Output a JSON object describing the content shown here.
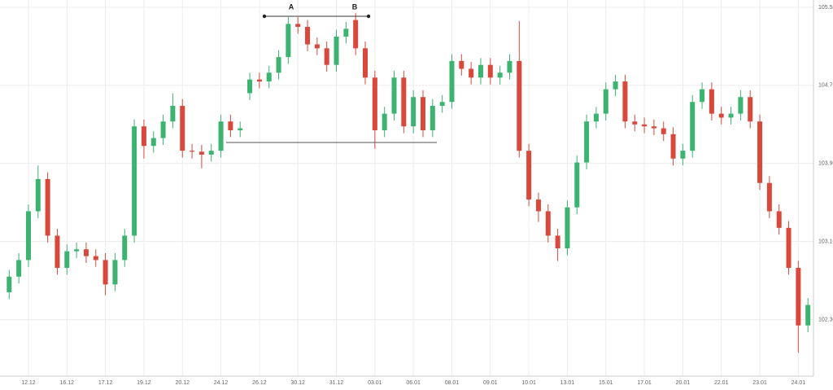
{
  "chart_data": {
    "type": "candlestick",
    "categories": [
      null,
      null,
      "12.12",
      null,
      null,
      null,
      "16.12",
      null,
      null,
      null,
      "17.12",
      null,
      null,
      null,
      "19.12",
      null,
      null,
      null,
      "20.12",
      null,
      null,
      null,
      "24.12",
      null,
      null,
      null,
      "26.12",
      null,
      null,
      null,
      "30.12",
      null,
      null,
      null,
      "31.12",
      null,
      null,
      null,
      "03.01",
      null,
      null,
      null,
      "06.01",
      null,
      null,
      null,
      "08.01",
      null,
      null,
      null,
      "09.01",
      null,
      null,
      null,
      "10.01",
      null,
      null,
      null,
      "13.01",
      null,
      null,
      null,
      "15.01",
      null,
      null,
      null,
      "17.01",
      null,
      null,
      null,
      "20.01",
      null,
      null,
      null,
      "22.01",
      null,
      null,
      null,
      "23.01",
      null,
      null,
      null,
      "24.01",
      null
    ],
    "open": [
      102.58,
      102.74,
      102.91,
      103.41,
      103.74,
      103.16,
      102.83,
      103.0,
      103.02,
      102.95,
      102.91,
      102.66,
      102.91,
      103.16,
      104.28,
      104.08,
      104.16,
      104.33,
      104.49,
      104.03,
      104.02,
      103.99,
      104.03,
      104.33,
      104.24,
      104.62,
      104.76,
      104.74,
      104.83,
      104.99,
      105.33,
      105.3,
      105.12,
      105.08,
      104.91,
      105.2,
      105.37,
      105.08,
      104.78,
      104.24,
      104.41,
      104.78,
      104.28,
      104.58,
      104.24,
      104.49,
      104.53,
      104.95,
      104.87,
      104.78,
      104.91,
      104.78,
      104.83,
      104.95,
      104.03,
      103.53,
      103.41,
      103.16,
      103.03,
      103.45,
      103.91,
      104.33,
      104.41,
      104.66,
      104.74,
      104.33,
      104.3,
      104.28,
      104.26,
      104.2,
      103.95,
      104.03,
      104.53,
      104.66,
      104.41,
      104.37,
      104.41,
      104.58,
      104.33,
      103.7,
      103.41,
      103.24,
      102.83,
      102.24
    ],
    "high": [
      102.81,
      102.98,
      103.48,
      103.88,
      103.81,
      103.23,
      103.07,
      103.09,
      103.09,
      103.02,
      102.98,
      102.98,
      103.23,
      104.35,
      104.35,
      104.23,
      104.4,
      104.62,
      104.56,
      104.1,
      104.09,
      104.1,
      104.4,
      104.4,
      104.33,
      104.83,
      104.83,
      104.9,
      105.06,
      105.4,
      105.4,
      105.37,
      105.19,
      105.15,
      105.27,
      105.35,
      105.44,
      105.15,
      104.85,
      104.48,
      104.85,
      104.85,
      104.65,
      104.65,
      104.56,
      104.6,
      105.02,
      105.02,
      104.94,
      104.98,
      104.98,
      104.9,
      105.02,
      105.36,
      104.1,
      103.6,
      103.48,
      103.23,
      103.52,
      103.98,
      104.4,
      104.48,
      104.73,
      104.81,
      104.81,
      104.4,
      104.37,
      104.35,
      104.33,
      104.27,
      104.1,
      104.6,
      104.73,
      104.73,
      104.48,
      104.48,
      104.65,
      104.65,
      104.4,
      103.77,
      103.48,
      103.31,
      102.9,
      102.52
    ],
    "low": [
      102.51,
      102.67,
      102.84,
      103.34,
      103.09,
      102.76,
      102.76,
      102.93,
      102.88,
      102.84,
      102.55,
      102.59,
      102.84,
      103.09,
      103.95,
      104.01,
      104.09,
      104.26,
      103.96,
      103.95,
      103.85,
      103.92,
      103.96,
      104.17,
      104.17,
      104.55,
      104.67,
      104.67,
      104.76,
      104.92,
      105.23,
      105.05,
      105.01,
      104.84,
      104.84,
      105.13,
      105.01,
      104.71,
      104.05,
      104.17,
      104.34,
      104.21,
      104.21,
      104.17,
      104.17,
      104.42,
      104.46,
      104.8,
      104.71,
      104.71,
      104.71,
      104.71,
      104.76,
      103.96,
      103.46,
      103.3,
      103.09,
      102.9,
      102.96,
      103.38,
      103.84,
      104.26,
      104.34,
      104.59,
      104.26,
      104.23,
      104.21,
      104.19,
      104.13,
      103.88,
      103.88,
      103.96,
      104.46,
      104.34,
      104.3,
      104.3,
      104.34,
      104.26,
      103.63,
      103.34,
      103.17,
      102.76,
      101.96,
      102.17
    ],
    "close": [
      102.74,
      102.91,
      103.41,
      103.74,
      103.16,
      102.83,
      103.0,
      103.02,
      102.95,
      102.91,
      102.66,
      102.91,
      103.16,
      104.28,
      104.08,
      104.16,
      104.33,
      104.49,
      104.03,
      104.02,
      103.99,
      104.03,
      104.33,
      104.24,
      104.26,
      104.76,
      104.74,
      104.83,
      104.99,
      105.33,
      105.3,
      105.12,
      105.08,
      104.91,
      105.2,
      105.28,
      105.08,
      104.78,
      104.24,
      104.41,
      104.78,
      104.28,
      104.58,
      104.24,
      104.49,
      104.53,
      104.95,
      104.87,
      104.78,
      104.91,
      104.78,
      104.83,
      104.95,
      104.03,
      103.53,
      103.41,
      103.16,
      103.03,
      103.45,
      103.91,
      104.33,
      104.41,
      104.66,
      104.74,
      104.33,
      104.3,
      104.28,
      104.26,
      104.2,
      103.95,
      104.03,
      104.53,
      104.66,
      104.41,
      104.37,
      104.41,
      104.58,
      104.33,
      103.7,
      103.41,
      103.24,
      102.83,
      102.24,
      102.45
    ],
    "up_color": "#3cb371",
    "down_color": "#d9483b",
    "ylim": [
      101.72,
      105.575
    ],
    "yticks": [
      {
        "value": 102.3,
        "label": "102.30"
      },
      {
        "value": 103.1,
        "label": "103.10"
      },
      {
        "value": 103.9,
        "label": "103.90"
      },
      {
        "value": 104.7,
        "label": "104.70"
      },
      {
        "value": 105.5,
        "label": "105.50"
      }
    ],
    "grid": true,
    "annotations": [
      "A",
      "B"
    ]
  }
}
